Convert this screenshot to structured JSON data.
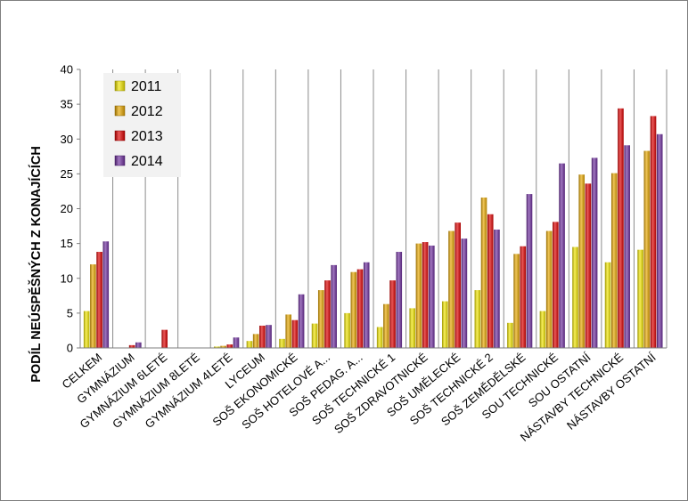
{
  "chart_data": {
    "type": "bar",
    "title": "",
    "xlabel": "",
    "ylabel": "PODÍL NEÚSPĚŠNÝCH Z KONAJÍCÍCH",
    "ylim": [
      0,
      40
    ],
    "yticks": [
      0,
      5,
      10,
      15,
      20,
      25,
      30,
      35,
      40
    ],
    "grid": "vertical category lines",
    "legend_position": "top-left",
    "categories": [
      "CELKEM",
      "GYMNÁZIUM",
      "GYMNÁZIUM 6LETÉ",
      "GYMNÁZIUM 8LETÉ",
      "GYMNÁZIUM 4LETÉ",
      "LYCEUM",
      "SOŠ EKONOMICKÉ",
      "SOŠ HOTELOVÉ A...",
      "SOŠ PEDAG. A...",
      "SOŠ TECHNICKÉ 1",
      "SOŠ ZDRAVOTNICKÉ",
      "SOŠ UMĚLECKÉ",
      "SOŠ TECHNICKÉ 2",
      "SOŠ ZEMĚDĚLSKÉ",
      "SOU TECHNICKÉ",
      "SOU OSTATNÍ",
      "NÁSTAVBY TECHNICKÉ",
      "NÁSTAVBY OSTATNÍ"
    ],
    "series": [
      {
        "name": "2011",
        "color": "#f2e600",
        "values": [
          5.3,
          0,
          0,
          0,
          0.2,
          1.0,
          1.3,
          3.5,
          5.0,
          3.0,
          5.7,
          6.7,
          8.3,
          3.6,
          5.3,
          14.5,
          12.3,
          14.1
        ]
      },
      {
        "name": "2012",
        "color": "#e8a800",
        "values": [
          12.0,
          0,
          0,
          0,
          0.3,
          2.0,
          4.8,
          8.3,
          10.9,
          6.3,
          15.0,
          16.8,
          21.6,
          13.5,
          16.8,
          24.9,
          25.1,
          28.3
        ]
      },
      {
        "name": "2013",
        "color": "#e00000",
        "values": [
          13.8,
          0.4,
          2.6,
          0,
          0.5,
          3.2,
          4.0,
          9.7,
          11.3,
          9.7,
          15.2,
          18.0,
          19.2,
          14.6,
          18.1,
          23.6,
          34.4,
          33.3
        ]
      },
      {
        "name": "2014",
        "color": "#7030a0",
        "values": [
          15.3,
          0.8,
          0,
          0,
          1.5,
          3.3,
          7.7,
          11.9,
          12.3,
          13.8,
          14.7,
          15.7,
          17.0,
          22.1,
          26.5,
          27.3,
          29.1,
          30.7
        ]
      }
    ]
  }
}
